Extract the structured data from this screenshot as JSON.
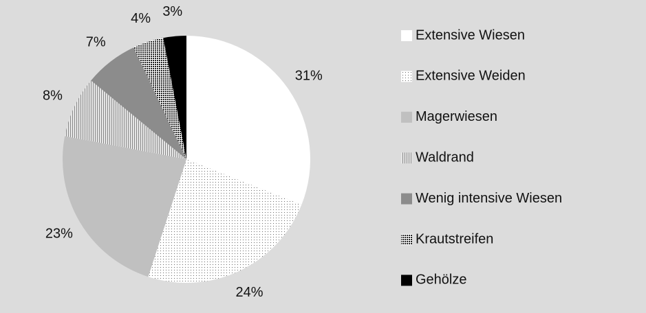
{
  "chart_data": {
    "type": "pie",
    "categories": [
      "Extensive Wiesen",
      "Extensive Weiden",
      "Magerwiesen",
      "Waldrand",
      "Wenig intensive Wiesen",
      "Krautstreifen",
      "Gehölze"
    ],
    "values": [
      31,
      24,
      23,
      8,
      7,
      4,
      3
    ],
    "value_labels": [
      "31%",
      "24%",
      "23%",
      "8%",
      "7%",
      "4%",
      "3%"
    ],
    "colors": [
      "#ffffff",
      "#f2f2f2",
      "#c0c0c0",
      "#d8d8d8",
      "#8c8c8c",
      "#b0b0b0",
      "#000000"
    ],
    "legend": "right"
  }
}
